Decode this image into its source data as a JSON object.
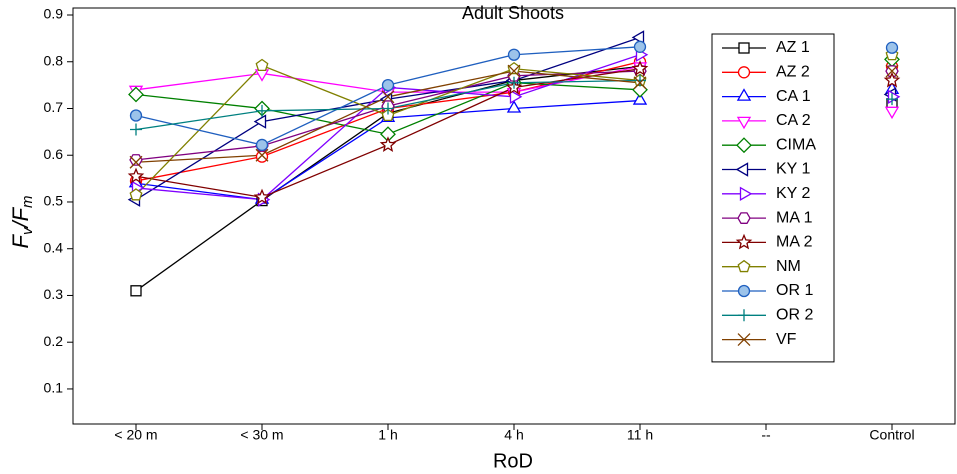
{
  "chart_data": {
    "type": "line",
    "title": "Adult Shoots",
    "x_label": "RoD",
    "y_label": [
      "F",
      "v",
      "/F",
      "m"
    ],
    "categories": [
      "< 20 m",
      "< 30 m",
      "1 h",
      "4 h",
      "11 h",
      "--",
      "Control"
    ],
    "ylim": [
      0.025,
      0.915
    ],
    "yticks": [
      0.1,
      0.2,
      0.3,
      0.4,
      0.5,
      0.6,
      0.7,
      0.8,
      0.9
    ],
    "legend": "upper right",
    "series": [
      {
        "name": "AZ 1",
        "color": "#000000",
        "marker": "square",
        "values": [
          0.31,
          0.503,
          0.69,
          0.76,
          0.79,
          null,
          0.71
        ]
      },
      {
        "name": "AZ 2",
        "color": "#ff0000",
        "marker": "circle",
        "values": [
          0.545,
          0.597,
          0.7,
          0.735,
          0.8,
          null,
          0.79
        ]
      },
      {
        "name": "CA 1",
        "color": "#0000ff",
        "marker": "triangle-up",
        "values": [
          0.54,
          0.505,
          0.68,
          0.7,
          0.717,
          null,
          0.74
        ]
      },
      {
        "name": "CA 2",
        "color": "#ff00ff",
        "marker": "triangle-down",
        "values": [
          0.74,
          0.775,
          0.735,
          0.735,
          0.79,
          null,
          0.695
        ]
      },
      {
        "name": "CIMA",
        "color": "#008000",
        "marker": "diamond",
        "values": [
          0.73,
          0.7,
          0.645,
          0.755,
          0.74,
          null,
          0.805
        ]
      },
      {
        "name": "KY 1",
        "color": "#000080",
        "marker": "triangle-left",
        "values": [
          0.505,
          0.672,
          0.72,
          0.76,
          0.852,
          null,
          0.73
        ]
      },
      {
        "name": "KY 2",
        "color": "#8000ff",
        "marker": "triangle-right",
        "values": [
          0.53,
          0.505,
          0.745,
          0.725,
          0.815,
          null,
          0.725
        ]
      },
      {
        "name": "MA 1",
        "color": "#800080",
        "marker": "hexagon",
        "values": [
          0.59,
          0.62,
          0.705,
          0.77,
          0.78,
          null,
          0.78
        ]
      },
      {
        "name": "MA 2",
        "color": "#800000",
        "marker": "star",
        "values": [
          0.555,
          0.51,
          0.622,
          0.745,
          0.785,
          null,
          0.76
        ]
      },
      {
        "name": "NM",
        "color": "#808000",
        "marker": "pentagon",
        "values": [
          0.515,
          0.792,
          0.685,
          0.785,
          0.76,
          null,
          0.815
        ]
      },
      {
        "name": "OR 1",
        "color": "#1f5fbf",
        "marker": "circle-filled",
        "values": [
          0.685,
          0.622,
          0.75,
          0.815,
          0.832,
          null,
          0.83
        ]
      },
      {
        "name": "OR 2",
        "color": "#008080",
        "marker": "plus",
        "values": [
          0.655,
          0.695,
          0.7,
          0.755,
          0.76,
          null,
          0.72
        ]
      },
      {
        "name": "VF",
        "color": "#804000",
        "marker": "cross",
        "values": [
          0.585,
          0.6,
          0.725,
          0.78,
          0.755,
          null,
          0.78
        ]
      }
    ]
  }
}
